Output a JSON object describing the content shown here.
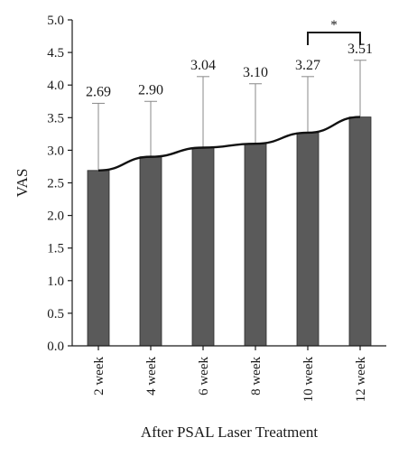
{
  "chart_data": {
    "type": "bar",
    "categories": [
      "2 week",
      "4 week",
      "6 week",
      "8 week",
      "10 week",
      "12 week"
    ],
    "values": [
      2.69,
      2.9,
      3.04,
      3.1,
      3.27,
      3.51
    ],
    "value_labels": [
      "2.69",
      "2.90",
      "3.04",
      "3.10",
      "3.27",
      "3.51"
    ],
    "error_upper": [
      3.72,
      3.75,
      4.13,
      4.02,
      4.13,
      4.38
    ],
    "ylabel": "VAS",
    "xlabel": "After PSAL Laser Treatment",
    "ylim": [
      0,
      5
    ],
    "yticks": [
      0.0,
      0.5,
      1.0,
      1.5,
      2.0,
      2.5,
      3.0,
      3.5,
      4.0,
      4.5,
      5.0
    ],
    "ytick_labels": [
      "0.0",
      "0.5",
      "1.0",
      "1.5",
      "2.0",
      "2.5",
      "3.0",
      "3.5",
      "4.0",
      "4.5",
      "5.0"
    ],
    "trend_line": true,
    "significance": {
      "between": [
        "10 week",
        "12 week"
      ],
      "label": "*"
    },
    "grid": false,
    "colors": {
      "bar": "#5a5a5a",
      "bar_edge": "#2a2a2a",
      "line": "#111111",
      "error_bar": "#888888",
      "axis": "#1a1a1a"
    }
  }
}
